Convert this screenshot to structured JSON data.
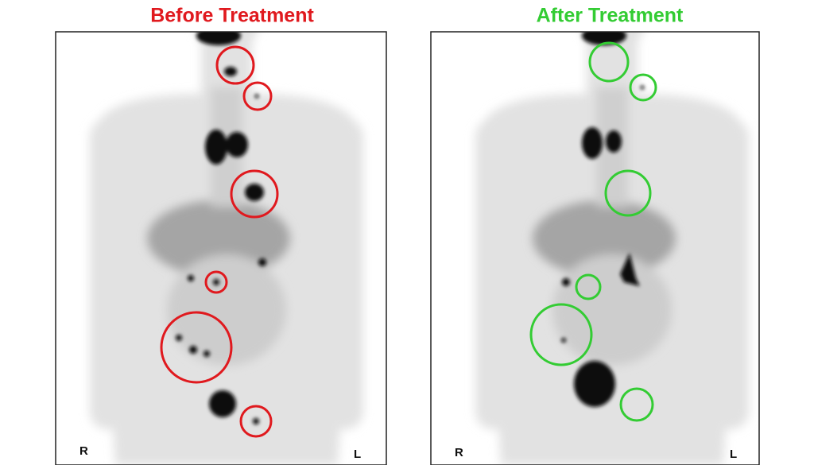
{
  "panels": [
    {
      "title": "Before Treatment",
      "right_side_label": "R",
      "left_side_label": "L"
    },
    {
      "title": "After Treatment",
      "right_side_label": "R",
      "left_side_label": "L"
    }
  ]
}
